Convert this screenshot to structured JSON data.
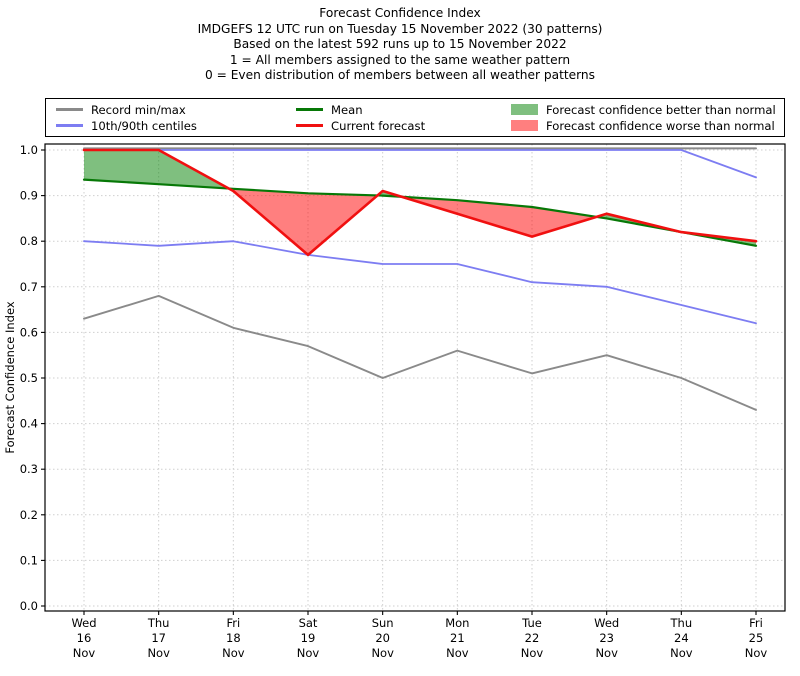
{
  "header": {
    "lines": [
      "Forecast Confidence Index",
      "IMDGEFS 12 UTC run on Tuesday 15 November 2022 (30 patterns)",
      "Based on the latest 592 runs up to 15 November 2022",
      "1 = All members assigned to the same weather pattern",
      "0 = Even distribution of members between all weather patterns"
    ]
  },
  "legend": {
    "items": [
      {
        "label": "Record min/max",
        "swatch": "line",
        "color": "#8a8a8a"
      },
      {
        "label": "10th/90th centiles",
        "swatch": "line",
        "color": "#7d7df2"
      },
      {
        "label": "Mean",
        "swatch": "line",
        "color": "#077807"
      },
      {
        "label": "Current forecast",
        "swatch": "line",
        "color": "#f01010"
      },
      {
        "label": "Forecast confidence better than normal",
        "swatch": "patch",
        "color": "#7fbf7f"
      },
      {
        "label": "Forecast confidence worse than normal",
        "swatch": "patch",
        "color": "#ff7f7f"
      }
    ]
  },
  "chart_data": {
    "type": "line",
    "title": "Forecast Confidence Index",
    "ylabel": "Forecast Confidence Index",
    "ylim": [
      0.0,
      1.0
    ],
    "yticks": [
      "0.0",
      "0.1",
      "0.2",
      "0.3",
      "0.4",
      "0.5",
      "0.6",
      "0.7",
      "0.8",
      "0.9",
      "1.0"
    ],
    "categories": [
      [
        "Wed",
        "16",
        "Nov"
      ],
      [
        "Thu",
        "17",
        "Nov"
      ],
      [
        "Fri",
        "18",
        "Nov"
      ],
      [
        "Sat",
        "19",
        "Nov"
      ],
      [
        "Sun",
        "20",
        "Nov"
      ],
      [
        "Mon",
        "21",
        "Nov"
      ],
      [
        "Tue",
        "22",
        "Nov"
      ],
      [
        "Wed",
        "23",
        "Nov"
      ],
      [
        "Thu",
        "24",
        "Nov"
      ],
      [
        "Fri",
        "25",
        "Nov"
      ]
    ],
    "grid": true,
    "legend_position": "top",
    "series": [
      {
        "name": "Record max",
        "color": "#8a8a8a",
        "width": 2.0,
        "values": [
          1.0,
          1.0,
          1.0,
          1.0,
          1.0,
          1.0,
          1.0,
          1.0,
          1.0,
          1.0
        ]
      },
      {
        "name": "90th centile",
        "color": "#7d7df2",
        "width": 1.8,
        "values": [
          1.0,
          1.0,
          1.0,
          1.0,
          1.0,
          1.0,
          1.0,
          1.0,
          1.0,
          0.94
        ]
      },
      {
        "name": "10th centile",
        "color": "#7d7df2",
        "width": 1.8,
        "values": [
          0.8,
          0.79,
          0.8,
          0.77,
          0.75,
          0.75,
          0.71,
          0.7,
          0.66,
          0.62
        ]
      },
      {
        "name": "Record min",
        "color": "#8a8a8a",
        "width": 1.9,
        "values": [
          0.63,
          0.68,
          0.61,
          0.57,
          0.5,
          0.56,
          0.51,
          0.55,
          0.5,
          0.43
        ]
      },
      {
        "name": "Mean",
        "color": "#077807",
        "width": 2.2,
        "values": [
          0.935,
          0.925,
          0.915,
          0.905,
          0.9,
          0.89,
          0.875,
          0.85,
          0.82,
          0.79
        ]
      },
      {
        "name": "Current forecast",
        "color": "#f01010",
        "width": 2.6,
        "values": [
          1.0,
          1.0,
          0.91,
          0.77,
          0.91,
          0.86,
          0.81,
          0.86,
          0.82,
          0.8
        ]
      }
    ],
    "fills": {
      "between": [
        "Current forecast",
        "Mean"
      ],
      "better_color": "#008000",
      "worse_color": "#ff0000",
      "opacity": 0.5
    }
  }
}
